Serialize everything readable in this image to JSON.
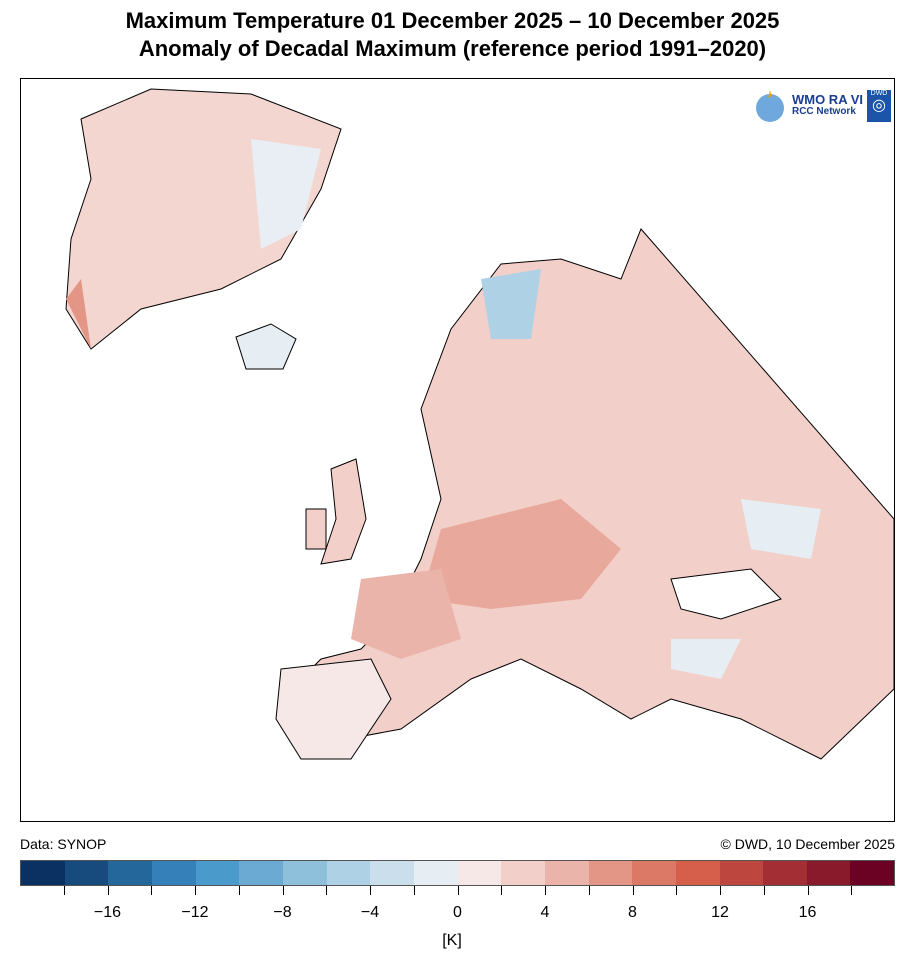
{
  "title_line1": "Maximum Temperature 01 December 2025 – 10 December 2025",
  "title_line2": "Anomaly of Decadal Maximum (reference period 1991–2020)",
  "logo": {
    "text1": "WMO RA VI",
    "text2": "RCC Network",
    "badge": "DWD"
  },
  "footer": {
    "source": "Data: SYNOP",
    "credit": "© DWD, 10 December 2025"
  },
  "colorbar": {
    "unit": "[K]",
    "range": [
      -20,
      20
    ],
    "step": 2,
    "tick_labels": [
      "−16",
      "−12",
      "−8",
      "−4",
      "0",
      "4",
      "8",
      "12",
      "16"
    ],
    "tick_values": [
      -16,
      -12,
      -8,
      -4,
      0,
      4,
      8,
      12,
      16
    ],
    "colors": [
      "#0a3162",
      "#174b7d",
      "#24679a",
      "#3580b8",
      "#4a9acb",
      "#6aaad3",
      "#8ebfdb",
      "#afd1e5",
      "#cadeec",
      "#e6eef3",
      "#f5e8e6",
      "#f2cfc9",
      "#ebb4aa",
      "#e39686",
      "#db7866",
      "#d65f4c",
      "#bd473e",
      "#a32f35",
      "#881a2c",
      "#6b0223"
    ]
  }
}
